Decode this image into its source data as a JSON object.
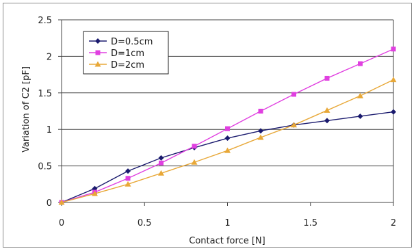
{
  "chart_data": {
    "type": "line",
    "title": "",
    "xlabel": "Contact force [N]",
    "ylabel": "Variation of C2 [pF]",
    "xlim": [
      0,
      2
    ],
    "ylim": [
      0,
      2.5
    ],
    "xticks": [
      "0",
      "0.5",
      "1",
      "1.5",
      "2"
    ],
    "yticks": [
      "0",
      "0.5",
      "1",
      "1.5",
      "2",
      "2.5"
    ],
    "grid": "horizontal",
    "legend_position": "top-left",
    "series": [
      {
        "name": "D=0.5cm",
        "color": "#1a1a6e",
        "marker": "diamond",
        "x": [
          0,
          0.2,
          0.4,
          0.6,
          0.8,
          1.0,
          1.2,
          1.4,
          1.6,
          1.8,
          2.0
        ],
        "y": [
          0,
          0.19,
          0.43,
          0.61,
          0.75,
          0.88,
          0.98,
          1.06,
          1.12,
          1.18,
          1.24
        ]
      },
      {
        "name": "D=1cm",
        "color": "#e040e0",
        "marker": "square",
        "x": [
          0,
          0.2,
          0.4,
          0.6,
          0.8,
          1.0,
          1.2,
          1.4,
          1.6,
          1.8,
          2.0
        ],
        "y": [
          0,
          0.14,
          0.33,
          0.54,
          0.77,
          1.01,
          1.25,
          1.48,
          1.7,
          1.9,
          2.1
        ]
      },
      {
        "name": "D=2cm",
        "color": "#e8a838",
        "marker": "triangle",
        "x": [
          0,
          0.2,
          0.4,
          0.6,
          0.8,
          1.0,
          1.2,
          1.4,
          1.6,
          1.8,
          2.0
        ],
        "y": [
          0,
          0.12,
          0.25,
          0.4,
          0.55,
          0.71,
          0.89,
          1.06,
          1.26,
          1.46,
          1.68
        ]
      }
    ]
  }
}
